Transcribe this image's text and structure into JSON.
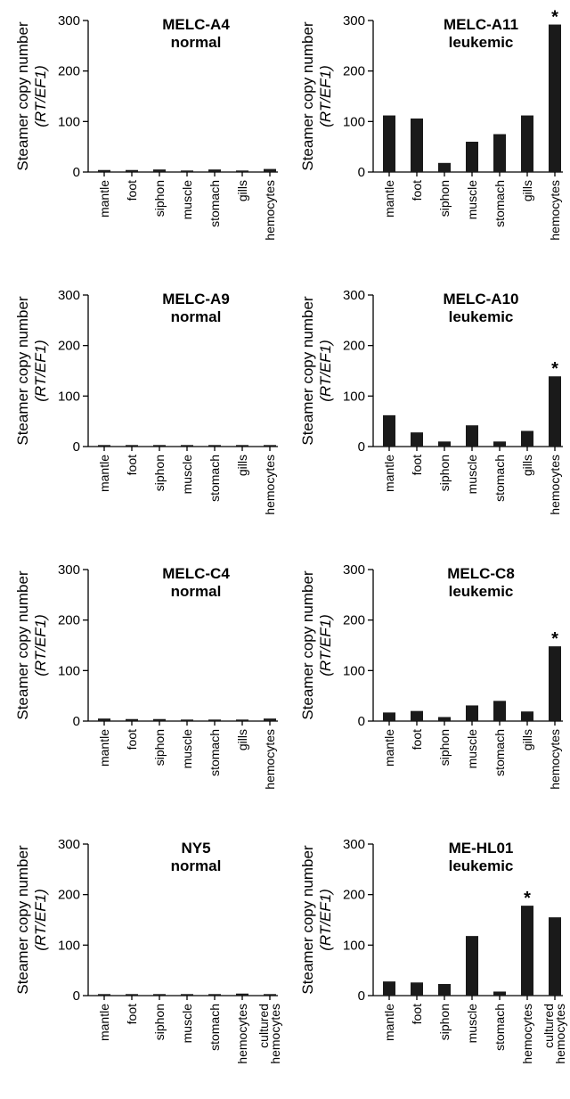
{
  "chart_data": [
    {
      "type": "bar",
      "title": "MELC-A4",
      "subtitle": "normal",
      "ylabel": "Steamer copy number",
      "ylabel_sub": "(RT/EF1)",
      "ylim": [
        0,
        300
      ],
      "yticks": [
        "0",
        "100",
        "200",
        "300"
      ],
      "categories": [
        "mantle",
        "foot",
        "siphon",
        "muscle",
        "stomach",
        "gills",
        "hemocytes"
      ],
      "values": [
        4,
        4,
        5,
        3,
        5,
        3,
        6
      ],
      "annotations": []
    },
    {
      "type": "bar",
      "title": "MELC-A11",
      "subtitle": "leukemic",
      "ylabel": "Steamer copy number",
      "ylabel_sub": "(RT/EF1)",
      "ylim": [
        0,
        300
      ],
      "yticks": [
        "0",
        "100",
        "200",
        "300"
      ],
      "categories": [
        "mantle",
        "foot",
        "siphon",
        "muscle",
        "stomach",
        "gills",
        "hemocytes"
      ],
      "values": [
        112,
        106,
        18,
        60,
        75,
        112,
        292
      ],
      "annotations": [
        {
          "category": "hemocytes",
          "text": "*"
        }
      ]
    },
    {
      "type": "bar",
      "title": "MELC-A9",
      "subtitle": "normal",
      "ylabel": "Steamer copy number",
      "ylabel_sub": "(RT/EF1)",
      "ylim": [
        0,
        300
      ],
      "yticks": [
        "0",
        "100",
        "200",
        "300"
      ],
      "categories": [
        "mantle",
        "foot",
        "siphon",
        "muscle",
        "stomach",
        "gills",
        "hemocytes"
      ],
      "values": [
        3,
        3,
        3,
        3,
        3,
        3,
        3
      ],
      "annotations": []
    },
    {
      "type": "bar",
      "title": "MELC-A10",
      "subtitle": "leukemic",
      "ylabel": "Steamer copy number",
      "ylabel_sub": "(RT/EF1)",
      "ylim": [
        0,
        300
      ],
      "yticks": [
        "0",
        "100",
        "200",
        "300"
      ],
      "categories": [
        "mantle",
        "foot",
        "siphon",
        "muscle",
        "stomach",
        "gills",
        "hemocytes"
      ],
      "values": [
        62,
        28,
        10,
        42,
        10,
        31,
        139
      ],
      "annotations": [
        {
          "category": "hemocytes",
          "text": "*"
        }
      ]
    },
    {
      "type": "bar",
      "title": "MELC-C4",
      "subtitle": "normal",
      "ylabel": "Steamer copy number",
      "ylabel_sub": "(RT/EF1)",
      "ylim": [
        0,
        300
      ],
      "yticks": [
        "0",
        "100",
        "200",
        "300"
      ],
      "categories": [
        "mantle",
        "foot",
        "siphon",
        "muscle",
        "stomach",
        "gills",
        "hemocytes"
      ],
      "values": [
        5,
        4,
        4,
        3,
        3,
        3,
        5
      ],
      "annotations": []
    },
    {
      "type": "bar",
      "title": "MELC-C8",
      "subtitle": "leukemic",
      "ylabel": "Steamer copy number",
      "ylabel_sub": "(RT/EF1)",
      "ylim": [
        0,
        300
      ],
      "yticks": [
        "0",
        "100",
        "200",
        "300"
      ],
      "categories": [
        "mantle",
        "foot",
        "siphon",
        "muscle",
        "stomach",
        "gills",
        "hemocytes"
      ],
      "values": [
        17,
        20,
        8,
        31,
        40,
        19,
        148
      ],
      "annotations": [
        {
          "category": "hemocytes",
          "text": "*"
        }
      ]
    },
    {
      "type": "bar",
      "title": "NY5",
      "subtitle": "normal",
      "ylabel": "Steamer copy number",
      "ylabel_sub": "(RT/EF1)",
      "ylim": [
        0,
        300
      ],
      "yticks": [
        "0",
        "100",
        "200",
        "300"
      ],
      "categories": [
        "mantle",
        "foot",
        "siphon",
        "muscle",
        "stomach",
        "hemocytes",
        "cultured hemocytes"
      ],
      "values": [
        3,
        3,
        3,
        3,
        3,
        4,
        3
      ],
      "annotations": []
    },
    {
      "type": "bar",
      "title": "ME-HL01",
      "subtitle": "leukemic",
      "ylabel": "Steamer copy number",
      "ylabel_sub": "(RT/EF1)",
      "ylim": [
        0,
        300
      ],
      "yticks": [
        "0",
        "100",
        "200",
        "300"
      ],
      "categories": [
        "mantle",
        "foot",
        "siphon",
        "muscle",
        "stomach",
        "hemocytes",
        "cultured hemocytes"
      ],
      "values": [
        28,
        26,
        23,
        118,
        8,
        178,
        155
      ],
      "annotations": [
        {
          "category": "hemocytes",
          "text": "*"
        }
      ]
    }
  ]
}
